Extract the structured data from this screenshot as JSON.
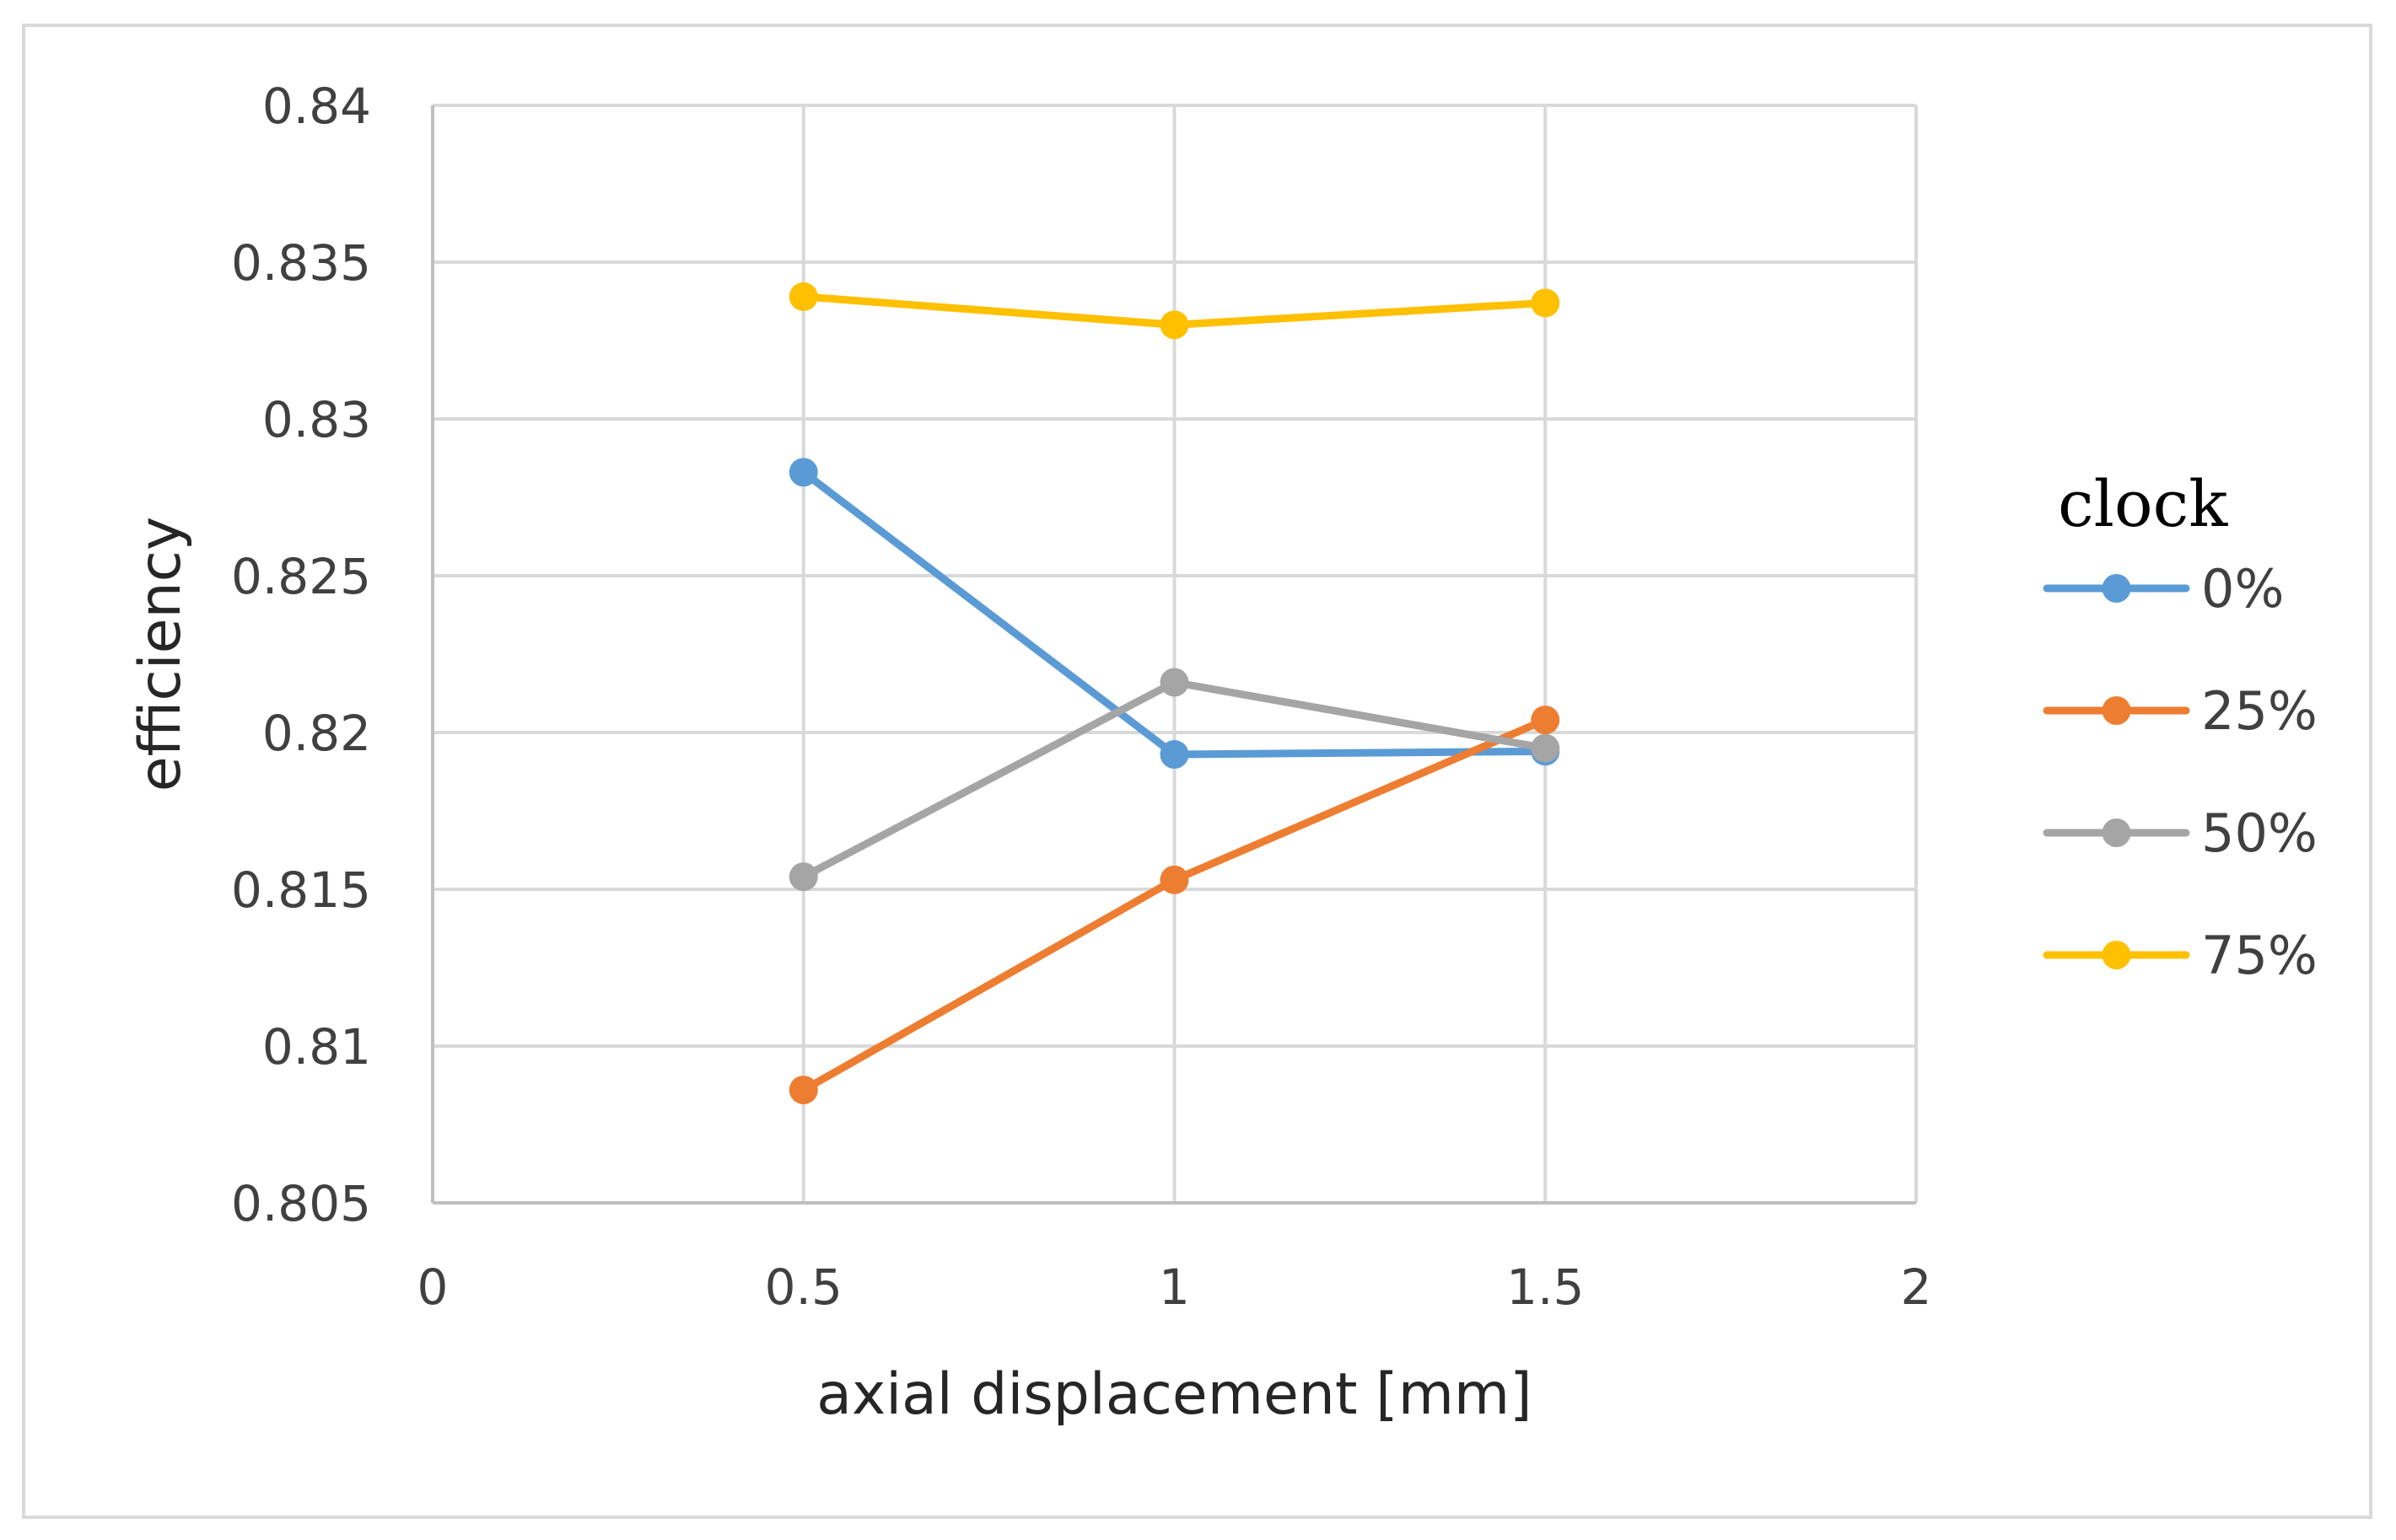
{
  "chart_data": {
    "type": "scatter",
    "xlabel": "axial displacement [mm]",
    "ylabel": "efficiency",
    "xlim": [
      0,
      2
    ],
    "ylim": [
      0.805,
      0.84
    ],
    "x_ticks": [
      "0",
      "0.5",
      "1",
      "1.5",
      "2"
    ],
    "y_ticks": [
      "0.805",
      "0.81",
      "0.815",
      "0.82",
      "0.825",
      "0.83",
      "0.835",
      "0.84"
    ],
    "grid": true,
    "legend": {
      "title": "clock",
      "placement": "right"
    },
    "series": [
      {
        "name": "0%",
        "color": "#5B9BD5",
        "x": [
          0.5,
          1,
          1.5
        ],
        "y": [
          0.8283,
          0.8193,
          0.8194
        ]
      },
      {
        "name": "25%",
        "color": "#ED7D31",
        "x": [
          0.5,
          1,
          1.5
        ],
        "y": [
          0.8086,
          0.8153,
          0.8204
        ]
      },
      {
        "name": "50%",
        "color": "#A5A5A5",
        "x": [
          0.5,
          1,
          1.5
        ],
        "y": [
          0.8154,
          0.8216,
          0.8195
        ]
      },
      {
        "name": "75%",
        "color": "#FFC000",
        "x": [
          0.5,
          1,
          1.5
        ],
        "y": [
          0.8339,
          0.833,
          0.8337
        ]
      }
    ]
  }
}
